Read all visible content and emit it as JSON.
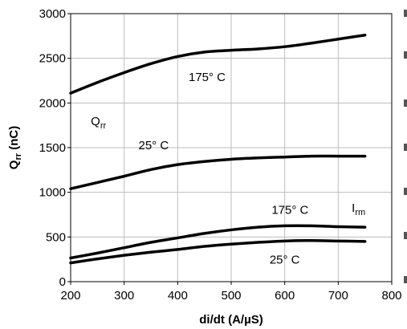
{
  "chart_data": {
    "type": "line",
    "xlabel": "di/dt (A/µS)",
    "ylabel": "Qrr (nC)",
    "xlim": [
      200,
      800
    ],
    "ylim": [
      0,
      3000
    ],
    "x_ticks": [
      200,
      300,
      400,
      500,
      600,
      700,
      800
    ],
    "y_ticks": [
      0,
      500,
      1000,
      1500,
      2000,
      2500,
      3000
    ],
    "grid": true,
    "series": [
      {
        "x": [
          200,
          250,
          300,
          350,
          400,
          450,
          500,
          550,
          600,
          650,
          700,
          750
        ],
        "y": [
          2110,
          2230,
          2340,
          2440,
          2520,
          2570,
          2590,
          2605,
          2630,
          2670,
          2715,
          2760
        ]
      },
      {
        "x": [
          200,
          250,
          300,
          350,
          400,
          450,
          500,
          550,
          600,
          650,
          700,
          750
        ],
        "y": [
          1040,
          1110,
          1180,
          1255,
          1310,
          1345,
          1370,
          1385,
          1395,
          1405,
          1405,
          1405
        ]
      },
      {
        "x": [
          200,
          250,
          300,
          350,
          400,
          450,
          500,
          550,
          600,
          650,
          700,
          750
        ],
        "y": [
          265,
          320,
          380,
          440,
          490,
          540,
          580,
          610,
          625,
          625,
          615,
          610
        ]
      },
      {
        "x": [
          200,
          250,
          300,
          350,
          400,
          450,
          500,
          550,
          600,
          650,
          700,
          750
        ],
        "y": [
          210,
          255,
          295,
          330,
          360,
          395,
          420,
          440,
          455,
          460,
          455,
          450
        ]
      }
    ],
    "annotations": [
      {
        "text": "175° C",
        "x": 455,
        "y": 2245
      },
      {
        "text": "Qrr",
        "x": 252,
        "y": 1750
      },
      {
        "text": "25° C",
        "x": 355,
        "y": 1480
      },
      {
        "text": "175° C",
        "x": 610,
        "y": 760
      },
      {
        "text": "Irm",
        "x": 738,
        "y": 780
      },
      {
        "text": "25° C",
        "x": 600,
        "y": 200
      }
    ]
  }
}
